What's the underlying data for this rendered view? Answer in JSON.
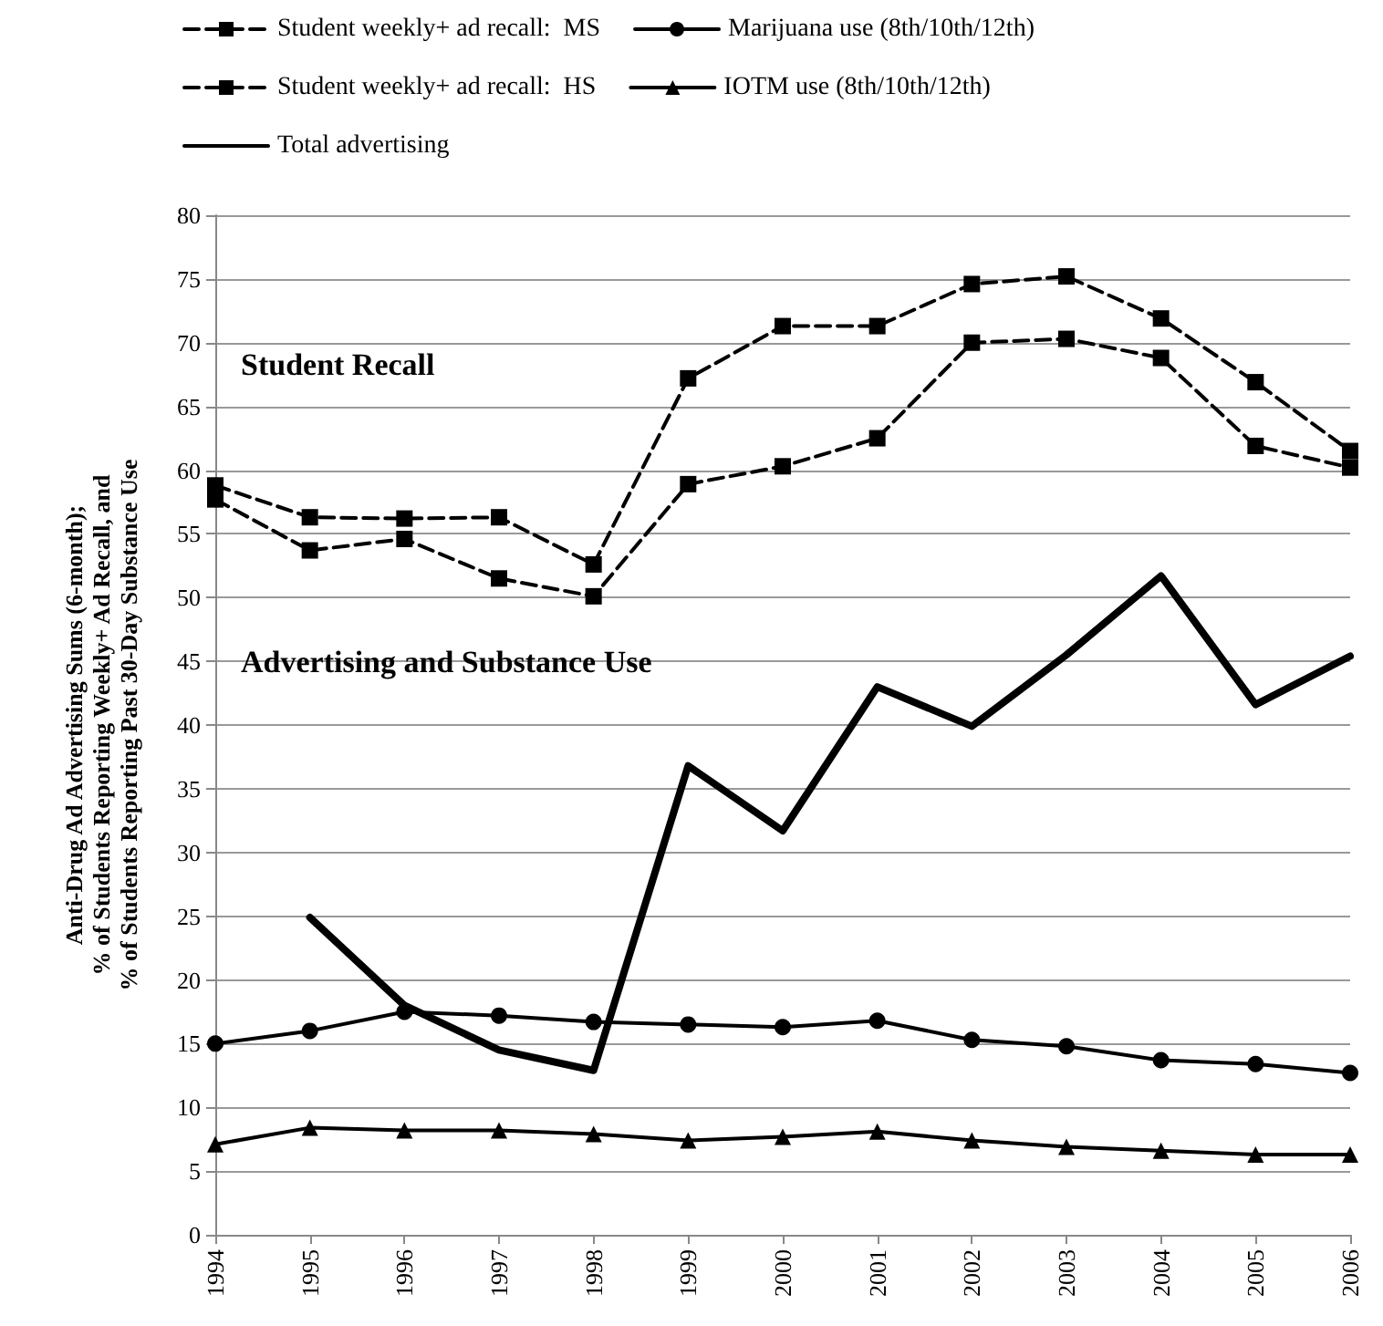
{
  "chart_data": {
    "type": "line",
    "ylabel": "Anti-Drug Ad Advertising Sums (6-month);\n% of Students Reporting Weekly+ Ad Recall, and\n% of Students Reporting Past 30-Day Substance Use",
    "categories": [
      "1994",
      "1995",
      "1996",
      "1997",
      "1998",
      "1999",
      "2000",
      "2001",
      "2002",
      "2003",
      "2004",
      "2005",
      "2006"
    ],
    "series": [
      {
        "name": "Student weekly+ ad recall:  MS",
        "color": "#000000",
        "marker": "square",
        "line_style": "dashed",
        "values": [
          58.8,
          56.3,
          56.2,
          56.3,
          52.6,
          67.2,
          71.3,
          71.3,
          74.6,
          75.2,
          71.9,
          66.9,
          61.5
        ]
      },
      {
        "name": "Marijuana use (8th/10th/12th)",
        "color": "#000000",
        "marker": "circle",
        "line_style": "solid",
        "values": [
          15.0,
          16.0,
          17.5,
          17.2,
          16.7,
          16.5,
          16.3,
          16.8,
          15.3,
          14.8,
          13.7,
          13.4,
          12.7
        ]
      },
      {
        "name": "Student weekly+ ad recall:  HS",
        "color": "#000000",
        "marker": "square",
        "line_style": "dashed",
        "values": [
          57.7,
          53.7,
          54.6,
          51.5,
          50.1,
          58.9,
          60.3,
          62.5,
          70.0,
          70.3,
          68.8,
          61.9,
          60.2
        ]
      },
      {
        "name": "IOTM use (8th/10th/12th)",
        "color": "#000000",
        "marker": "triangle",
        "line_style": "solid",
        "values": [
          7.1,
          8.4,
          8.2,
          8.2,
          7.9,
          7.4,
          7.7,
          8.1,
          7.4,
          6.9,
          6.6,
          6.3,
          6.3
        ]
      },
      {
        "name": "Total advertising",
        "color": "#000000",
        "marker": "none",
        "line_style": "solid",
        "values": [
          null,
          24.9,
          18.0,
          14.5,
          12.9,
          36.8,
          31.7,
          43.0,
          39.9,
          45.5,
          51.7,
          41.6,
          45.4
        ]
      }
    ],
    "annotations": [
      "Student Recall",
      "Advertising and Substance Use"
    ],
    "ylim": [
      0,
      80
    ],
    "yticks": [
      0,
      5,
      10,
      15,
      20,
      25,
      30,
      35,
      40,
      45,
      50,
      55,
      60,
      65,
      70,
      75,
      80
    ],
    "grid": "y",
    "legend": "top left"
  }
}
